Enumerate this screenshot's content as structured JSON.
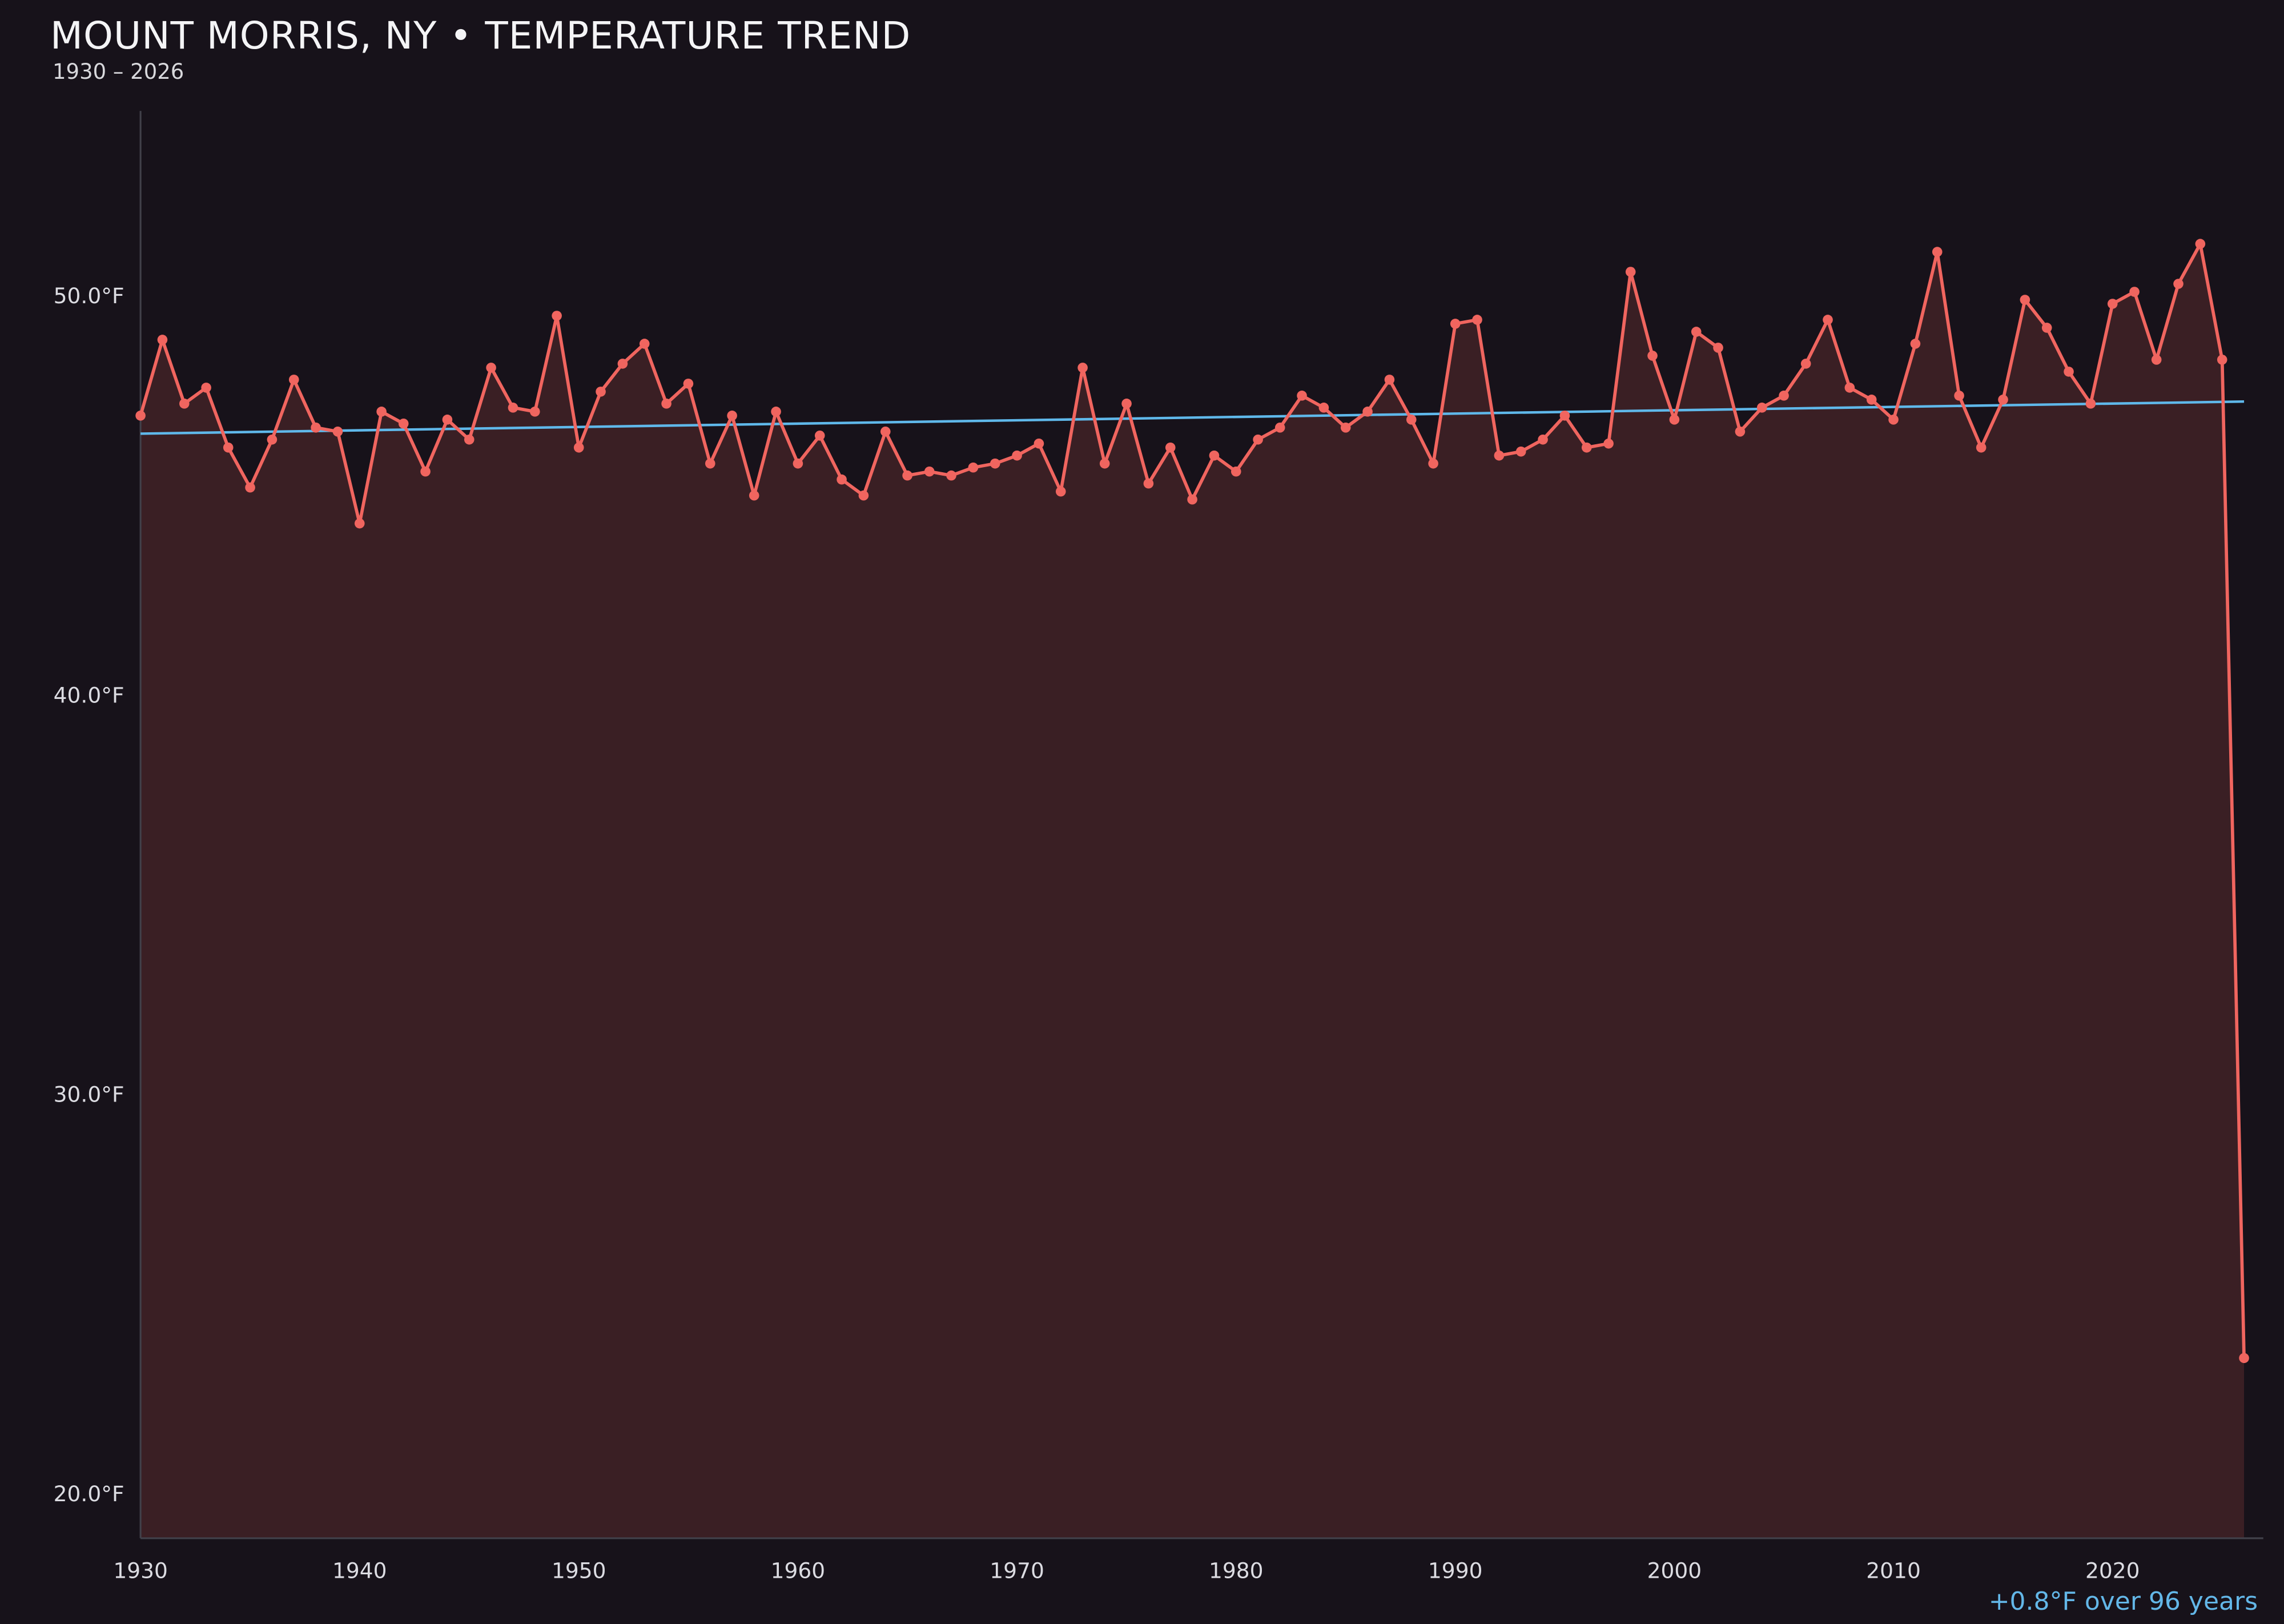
{
  "header": {
    "title": "MOUNT MORRIS, NY • TEMPERATURE TREND",
    "subtitle": "1930 – 2026"
  },
  "annotation": {
    "trend_label": "+0.8°F over 96 years"
  },
  "chart_data": {
    "type": "line",
    "title": "MOUNT MORRIS, NY • TEMPERATURE TREND",
    "subtitle": "1930 – 2026",
    "annotation": "+0.8°F over 96 years",
    "xlabel": "",
    "ylabel": "",
    "grid": false,
    "legend": "none",
    "xlim": [
      1930,
      2027
    ],
    "ylim": [
      18.9,
      54.6
    ],
    "x_ticks": [
      1930,
      1940,
      1950,
      1960,
      1970,
      1980,
      1990,
      2000,
      2010,
      2020
    ],
    "y_ticks": [
      {
        "value": 50,
        "label": "50.0°F"
      },
      {
        "value": 40,
        "label": "40.0°F"
      },
      {
        "value": 30,
        "label": "30.0°F"
      },
      {
        "value": 20,
        "label": "20.0°F"
      }
    ],
    "x": [
      1930,
      1931,
      1932,
      1933,
      1934,
      1935,
      1936,
      1937,
      1938,
      1939,
      1940,
      1941,
      1942,
      1943,
      1944,
      1945,
      1946,
      1947,
      1948,
      1949,
      1950,
      1951,
      1952,
      1953,
      1954,
      1955,
      1956,
      1957,
      1958,
      1959,
      1960,
      1961,
      1962,
      1963,
      1964,
      1965,
      1966,
      1967,
      1968,
      1969,
      1970,
      1971,
      1972,
      1973,
      1974,
      1975,
      1976,
      1977,
      1978,
      1979,
      1980,
      1981,
      1982,
      1983,
      1984,
      1985,
      1986,
      1987,
      1988,
      1989,
      1990,
      1991,
      1992,
      1993,
      1994,
      1995,
      1996,
      1997,
      1998,
      1999,
      2000,
      2001,
      2002,
      2003,
      2004,
      2005,
      2006,
      2007,
      2008,
      2009,
      2010,
      2011,
      2012,
      2013,
      2014,
      2015,
      2016,
      2017,
      2018,
      2019,
      2020,
      2021,
      2022,
      2023,
      2024,
      2025,
      2026
    ],
    "values": [
      47.0,
      48.9,
      47.3,
      47.7,
      46.2,
      45.2,
      46.4,
      47.9,
      46.7,
      46.6,
      44.3,
      47.1,
      46.8,
      45.6,
      46.9,
      46.4,
      48.2,
      47.2,
      47.1,
      49.5,
      46.2,
      47.6,
      48.3,
      48.8,
      47.3,
      47.8,
      45.8,
      47.0,
      45.0,
      47.1,
      45.8,
      46.5,
      45.4,
      45.0,
      46.6,
      45.5,
      45.6,
      45.5,
      45.7,
      45.8,
      46.0,
      46.3,
      45.1,
      48.2,
      45.8,
      47.3,
      45.3,
      46.2,
      44.9,
      46.0,
      45.6,
      46.4,
      46.7,
      47.5,
      47.2,
      46.7,
      47.1,
      47.9,
      46.9,
      45.8,
      49.3,
      49.4,
      46.0,
      46.1,
      46.4,
      47.0,
      46.2,
      46.3,
      50.6,
      48.5,
      46.9,
      49.1,
      48.7,
      46.6,
      47.2,
      47.5,
      48.3,
      49.4,
      47.7,
      47.4,
      46.9,
      48.8,
      51.1,
      47.5,
      46.2,
      47.4,
      49.9,
      49.2,
      48.1,
      47.3,
      49.8,
      50.1,
      48.4,
      50.3,
      51.3,
      48.4,
      23.4
    ],
    "trend": {
      "start_year": 1930,
      "end_year": 2026,
      "start_value": 46.55,
      "end_value": 47.35,
      "delta_label": "+0.8°F over 96 years"
    },
    "colors": {
      "background": "#17121a",
      "line": "#f0655f",
      "fill": "rgba(240,101,95,0.16)",
      "trend": "#5fb8ea",
      "tick_text": "#dcdce2",
      "spine": "#41414a",
      "title_text": "#f4f4f6",
      "annotation_text": "#63b7e8"
    }
  }
}
